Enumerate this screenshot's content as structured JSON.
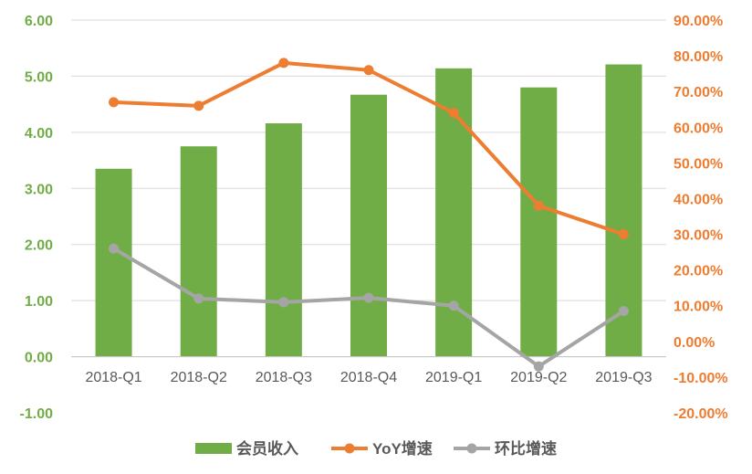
{
  "chart_data": {
    "type": "bar",
    "categories": [
      "2018-Q1",
      "2018-Q2",
      "2018-Q3",
      "2018-Q4",
      "2019-Q1",
      "2019-Q2",
      "2019-Q3"
    ],
    "series": [
      {
        "name": "会员收入",
        "type": "bar",
        "axis": "left",
        "color": "#70ad47",
        "values": [
          3.35,
          3.75,
          4.16,
          4.67,
          5.14,
          4.8,
          5.21
        ]
      },
      {
        "name": "YoY增速",
        "type": "line",
        "axis": "right",
        "color": "#ed7d31",
        "values": [
          67.0,
          66.0,
          78.0,
          76.0,
          64.0,
          38.0,
          30.0
        ]
      },
      {
        "name": "环比增速",
        "type": "line",
        "axis": "right",
        "color": "#a5a5a5",
        "values": [
          26.0,
          12.0,
          11.0,
          12.2,
          10.0,
          -7.0,
          8.5
        ]
      }
    ],
    "left_axis": {
      "min": -1,
      "max": 6,
      "step": 1,
      "tick_labels": [
        "-1.00",
        "0.00",
        "1.00",
        "2.00",
        "3.00",
        "4.00",
        "5.00",
        "6.00"
      ]
    },
    "right_axis": {
      "min": -20,
      "max": 90,
      "step": 10,
      "tick_labels": [
        "-20.00%",
        "-10.00%",
        "0.00%",
        "10.00%",
        "20.00%",
        "30.00%",
        "40.00%",
        "50.00%",
        "60.00%",
        "70.00%",
        "80.00%",
        "90.00%"
      ]
    },
    "grid": true,
    "legend_position": "bottom"
  }
}
